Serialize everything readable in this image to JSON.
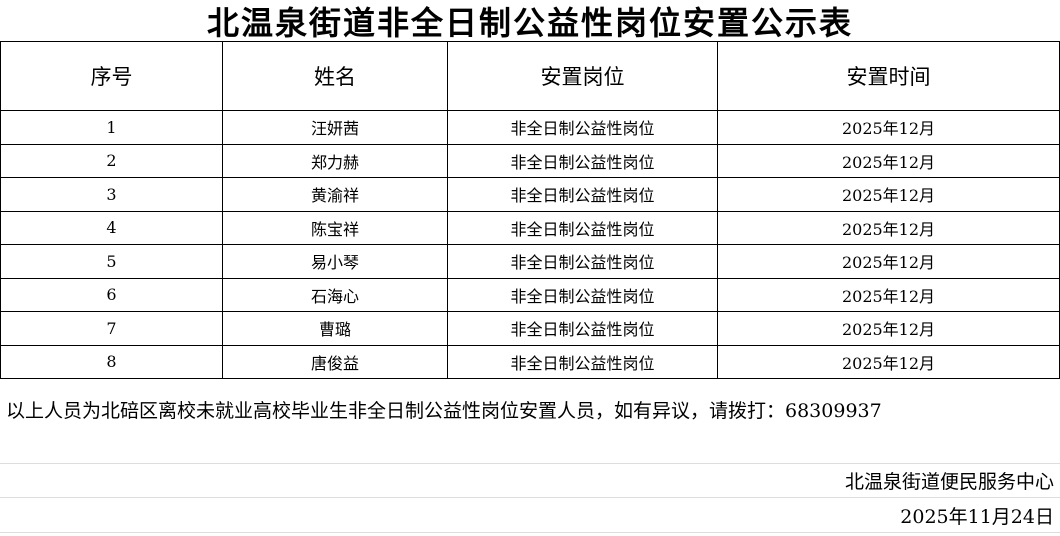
{
  "title": "北温泉街道非全日制公益性岗位安置公示表",
  "table": {
    "headers": [
      "序号",
      "姓名",
      "安置岗位",
      "安置时间"
    ],
    "rows": [
      [
        "1",
        "汪妍茜",
        "非全日制公益性岗位",
        "2025年12月"
      ],
      [
        "2",
        "郑力赫",
        "非全日制公益性岗位",
        "2025年12月"
      ],
      [
        "3",
        "黄渝祥",
        "非全日制公益性岗位",
        "2025年12月"
      ],
      [
        "4",
        "陈宝祥",
        "非全日制公益性岗位",
        "2025年12月"
      ],
      [
        "5",
        "易小琴",
        "非全日制公益性岗位",
        "2025年12月"
      ],
      [
        "6",
        "石海心",
        "非全日制公益性岗位",
        "2025年12月"
      ],
      [
        "7",
        "曹璐",
        "非全日制公益性岗位",
        "2025年12月"
      ],
      [
        "8",
        "唐俊益",
        "非全日制公益性岗位",
        "2025年12月"
      ]
    ]
  },
  "footer": {
    "note": "以上人员为北碚区离校未就业高校毕业生非全日制公益性岗位安置人员，如有异议，请拨打：68309937",
    "issuer": "北温泉街道便民服务中心",
    "date": "2025年11月24日"
  }
}
